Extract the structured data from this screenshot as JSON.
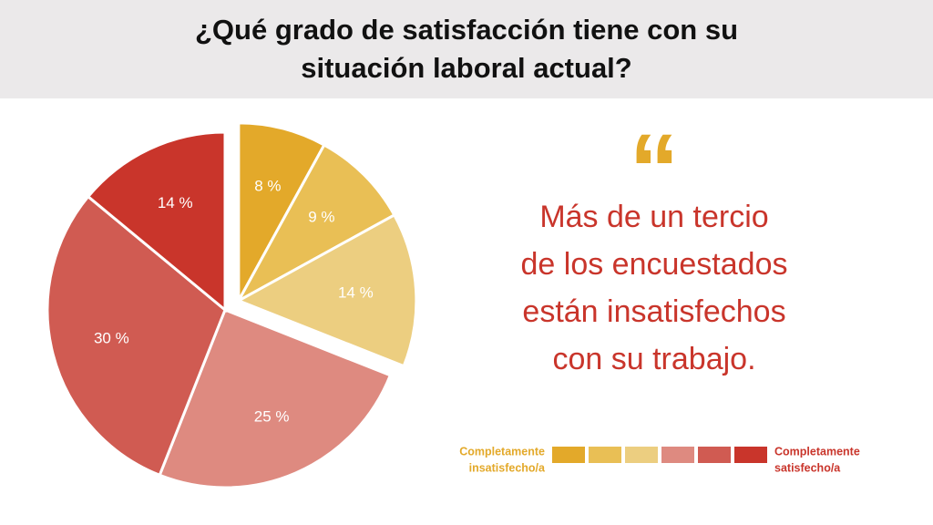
{
  "chart_data": {
    "type": "pie",
    "title": "¿Qué grado de satisfacción tiene con su situación laboral actual?",
    "values": [
      8,
      9,
      14,
      25,
      30,
      14
    ],
    "value_labels": [
      "8 %",
      "9 %",
      "14 %",
      "25 %",
      "30 %",
      "14 %"
    ],
    "colors": [
      "#e3a92a",
      "#e9bf55",
      "#ecce80",
      "#de8a80",
      "#d05b52",
      "#c9352b"
    ],
    "exploded": [
      true,
      true,
      true,
      false,
      false,
      false
    ],
    "legend": {
      "low": [
        "Completamente",
        "insatisfecho/a"
      ],
      "high": [
        "Completamente",
        "satisfecho/a"
      ]
    },
    "quote_mark": "“",
    "quote": [
      "Más de un tercio",
      "de los encuestados",
      "están insatisfechos",
      "con su trabajo."
    ]
  }
}
